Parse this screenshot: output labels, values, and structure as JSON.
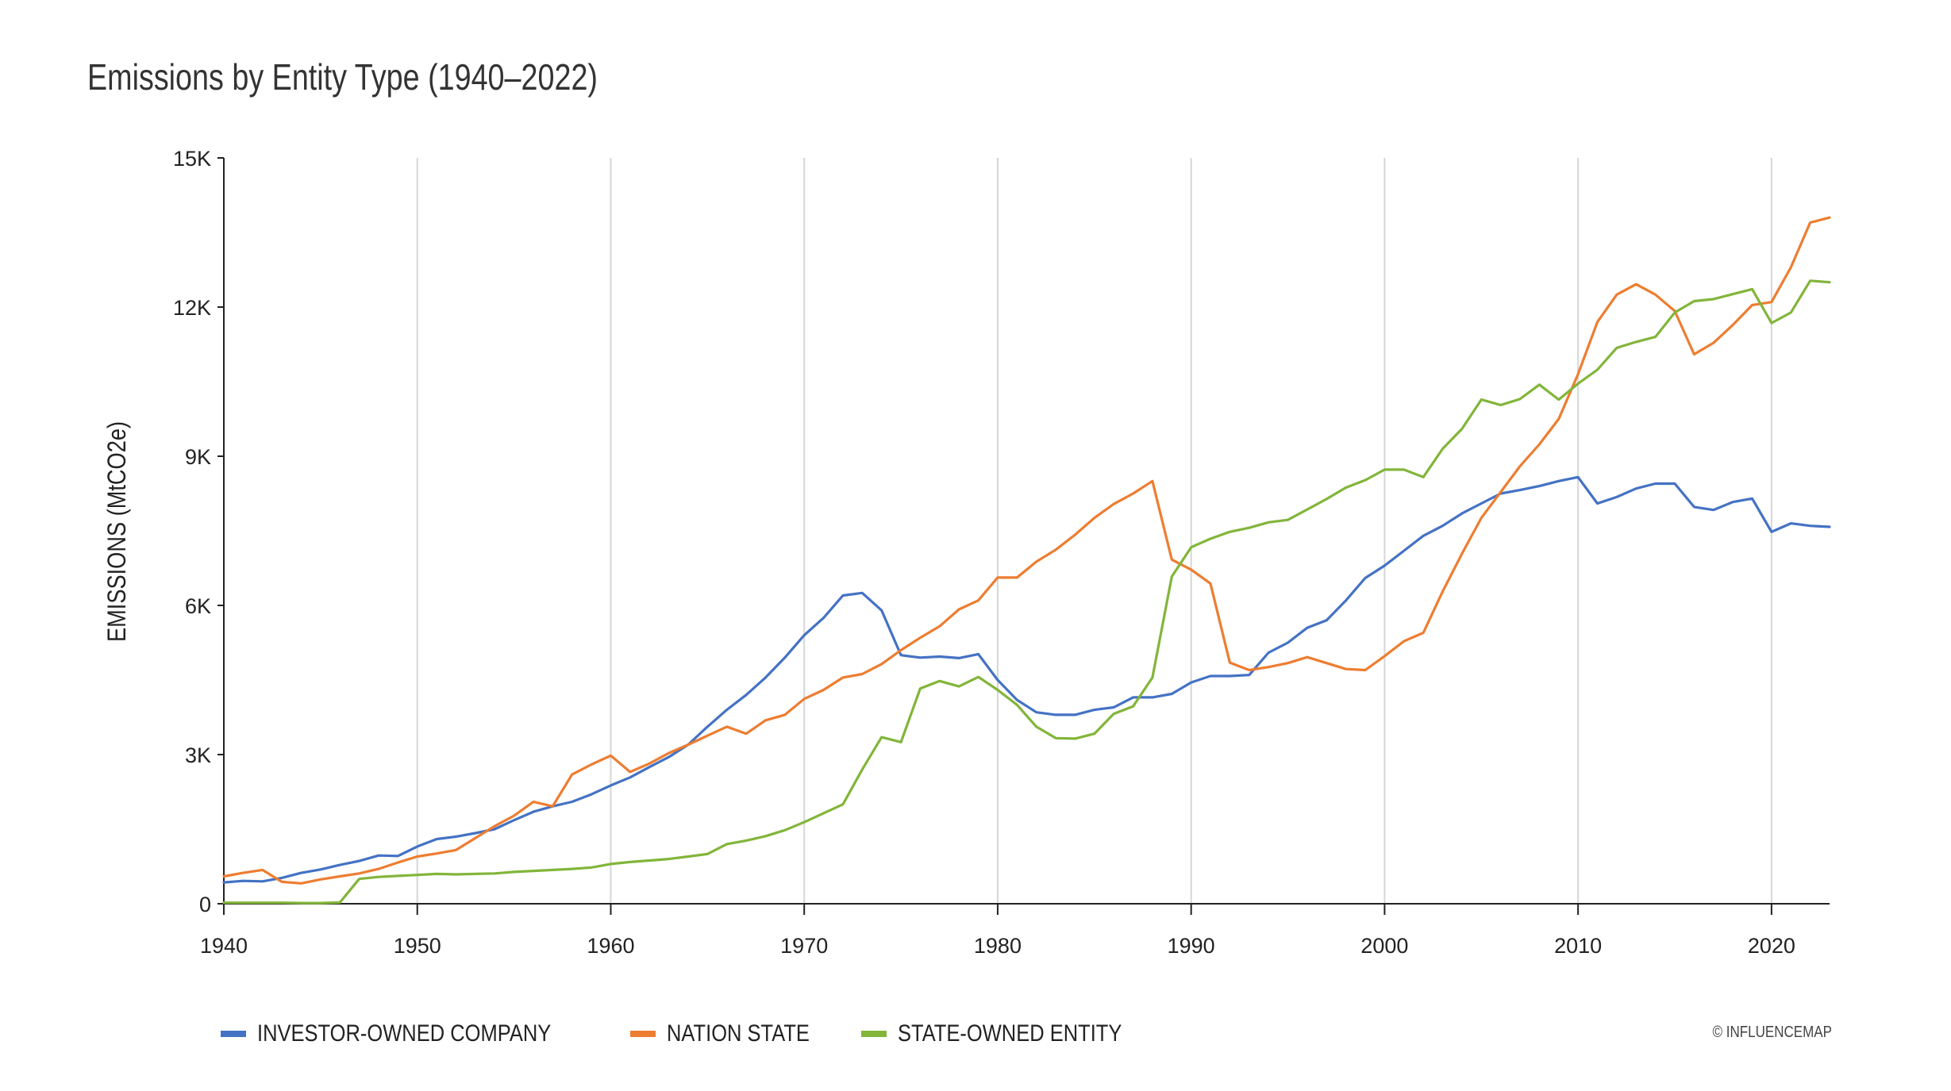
{
  "chart_data": {
    "type": "line",
    "title": "Emissions by Entity Type (1940–2022)",
    "ylabel": "EMISSIONS (MtCO2e)",
    "xlabel": "",
    "xlim": [
      1940,
      2023
    ],
    "ylim": [
      0,
      15000
    ],
    "x_ticks": [
      1940,
      1950,
      1960,
      1970,
      1980,
      1990,
      2000,
      2010,
      2020
    ],
    "x_tick_labels": [
      "1940",
      "1950",
      "1960",
      "1970",
      "1980",
      "1990",
      "2000",
      "2010",
      "2020"
    ],
    "y_ticks": [
      0,
      3000,
      6000,
      9000,
      12000,
      15000
    ],
    "y_tick_labels": [
      "0",
      "3K",
      "6K",
      "9K",
      "12K",
      "15K"
    ],
    "grid": "vertical",
    "legend_position": "bottom-left",
    "x": [
      1940,
      1941,
      1942,
      1943,
      1944,
      1945,
      1946,
      1947,
      1948,
      1949,
      1950,
      1951,
      1952,
      1953,
      1954,
      1955,
      1956,
      1957,
      1958,
      1959,
      1960,
      1961,
      1962,
      1963,
      1964,
      1965,
      1966,
      1967,
      1968,
      1969,
      1970,
      1971,
      1972,
      1973,
      1974,
      1975,
      1976,
      1977,
      1978,
      1979,
      1980,
      1981,
      1982,
      1983,
      1984,
      1985,
      1986,
      1987,
      1988,
      1989,
      1990,
      1991,
      1992,
      1993,
      1994,
      1995,
      1996,
      1997,
      1998,
      1999,
      2000,
      2001,
      2002,
      2003,
      2004,
      2005,
      2006,
      2007,
      2008,
      2009,
      2010,
      2011,
      2012,
      2013,
      2014,
      2015,
      2016,
      2017,
      2018,
      2019,
      2020,
      2021,
      2022,
      2023
    ],
    "series": [
      {
        "name": "INVESTOR-OWNED COMPANY",
        "color": "#4472C4",
        "values": [
          430,
          460,
          450,
          520,
          620,
          690,
          780,
          860,
          970,
          960,
          1150,
          1300,
          1350,
          1420,
          1500,
          1680,
          1850,
          1960,
          2050,
          2200,
          2380,
          2540,
          2750,
          2950,
          3200,
          3560,
          3900,
          4200,
          4550,
          4950,
          5400,
          5750,
          6200,
          6250,
          5900,
          5000,
          4950,
          4970,
          4940,
          5020,
          4500,
          4100,
          3850,
          3800,
          3800,
          3900,
          3950,
          4150,
          4150,
          4220,
          4450,
          4580,
          4580,
          4600,
          5050,
          5250,
          5550,
          5700,
          6100,
          6550,
          6800,
          7100,
          7400,
          7600,
          7850,
          8050,
          8250,
          8320,
          8400,
          8500,
          8580,
          8050,
          8180,
          8350,
          8450,
          8450,
          7980,
          7920,
          8080,
          8150,
          7480,
          7650,
          7600,
          7580
        ]
      },
      {
        "name": "NATION STATE",
        "color": "#ED7D31",
        "values": [
          550,
          620,
          680,
          440,
          410,
          490,
          550,
          610,
          700,
          830,
          950,
          1010,
          1080,
          1320,
          1560,
          1770,
          2050,
          1960,
          2600,
          2800,
          2980,
          2650,
          2820,
          3030,
          3200,
          3380,
          3560,
          3420,
          3690,
          3800,
          4120,
          4300,
          4550,
          4620,
          4820,
          5100,
          5350,
          5580,
          5920,
          6100,
          6560,
          6560,
          6880,
          7120,
          7420,
          7760,
          8040,
          8250,
          8500,
          6920,
          6720,
          6440,
          4850,
          4700,
          4760,
          4840,
          4960,
          4840,
          4720,
          4700,
          4980,
          5280,
          5450,
          6280,
          7040,
          7760,
          8280,
          8800,
          9240,
          9750,
          10650,
          11700,
          12250,
          12460,
          12250,
          11920,
          11050,
          11280,
          11640,
          12040,
          12100,
          12800,
          13700,
          13800
        ]
      },
      {
        "name": "STATE-OWNED ENTITY",
        "color": "#82B53A",
        "values": [
          20,
          20,
          20,
          20,
          15,
          15,
          25,
          500,
          540,
          560,
          580,
          600,
          590,
          600,
          610,
          640,
          660,
          680,
          700,
          730,
          800,
          840,
          870,
          900,
          950,
          1000,
          1200,
          1270,
          1360,
          1480,
          1640,
          1820,
          2000,
          2700,
          3350,
          3250,
          4330,
          4480,
          4370,
          4560,
          4300,
          4000,
          3560,
          3330,
          3320,
          3420,
          3820,
          3970,
          4550,
          6580,
          7170,
          7340,
          7480,
          7560,
          7670,
          7720,
          7930,
          8140,
          8370,
          8520,
          8730,
          8730,
          8580,
          9150,
          9550,
          10140,
          10030,
          10150,
          10440,
          10140,
          10460,
          10740,
          11180,
          11300,
          11400,
          11890,
          12120,
          12160,
          12260,
          12360,
          11680,
          11890,
          12530,
          12500
        ]
      }
    ],
    "credit": "© INFLUENCEMAP"
  }
}
